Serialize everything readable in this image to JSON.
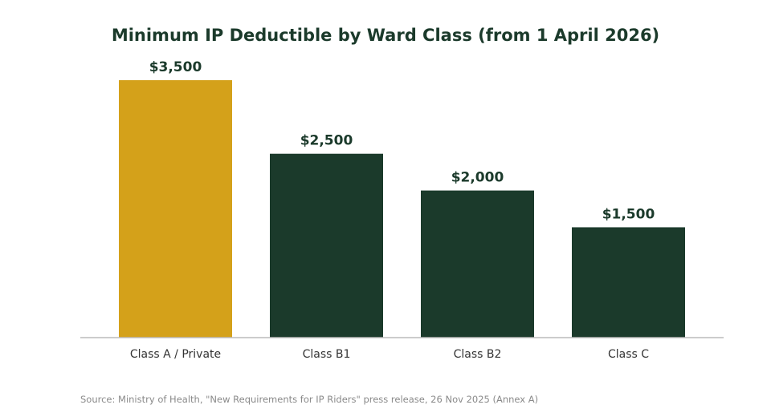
{
  "chart_data": {
    "type": "bar",
    "title": "Minimum IP Deductible by Ward Class (from 1 April 2026)",
    "categories": [
      "Class A / Private",
      "Class B1",
      "Class B2",
      "Class C"
    ],
    "values": [
      3500,
      2500,
      2000,
      1500
    ],
    "value_labels": [
      "$3,500",
      "$2,500",
      "$2,000",
      "$1,500"
    ],
    "bar_colors": [
      "#d4a11a",
      "#1b3a2b",
      "#1b3a2b",
      "#1b3a2b"
    ],
    "xlabel": "",
    "ylabel": "",
    "ylim": [
      0,
      3500
    ],
    "grid": false,
    "legend": "none",
    "source_note": "Source: Ministry of Health, \"New Requirements for IP Riders\" press release, 26 Nov 2025 (Annex A)"
  },
  "colors": {
    "highlight": "#d4a11a",
    "primary": "#1b3a2b",
    "axis": "#bbbbbb"
  }
}
